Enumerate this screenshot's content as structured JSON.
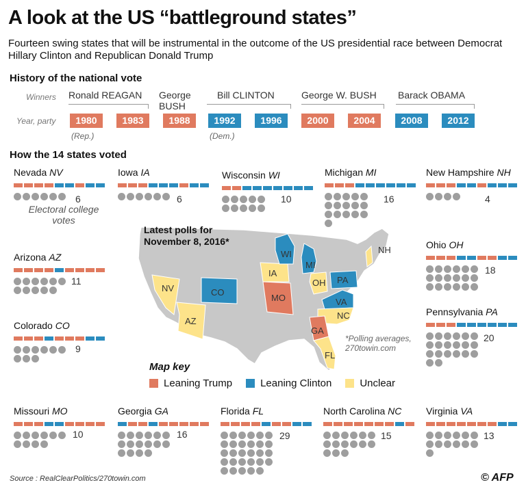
{
  "title": "A look at the US “battleground states”",
  "subtitle": "Fourteen swing states that will be instrumental in the outcome of the US presidential race between Democrat Hillary Clinton and Republican Donald Trump",
  "history": {
    "heading": "History of the national vote",
    "winners_label": "Winners",
    "year_label": "Year, party",
    "winners": [
      "Ronald REAGAN",
      "George BUSH",
      "Bill CLINTON",
      "George W. BUSH",
      "Barack OBAMA"
    ],
    "rep_note": "(Rep.)",
    "dem_note": "(Dem.)",
    "years": [
      {
        "year": "1980",
        "party": "R"
      },
      {
        "year": "1983",
        "party": "R"
      },
      {
        "year": "1988",
        "party": "R"
      },
      {
        "year": "1992",
        "party": "D"
      },
      {
        "year": "1996",
        "party": "D"
      },
      {
        "year": "2000",
        "party": "R"
      },
      {
        "year": "2004",
        "party": "R"
      },
      {
        "year": "2008",
        "party": "D"
      },
      {
        "year": "2012",
        "party": "D"
      }
    ]
  },
  "colors": {
    "rep": "#e07a5f",
    "dem": "#2b8cbe",
    "unclear": "#fde38a",
    "dot": "#9e9e9e",
    "map_grey": "#c8c8c8"
  },
  "states_heading": "How the 14 states voted",
  "electoral_note": "Electoral college votes",
  "states": [
    {
      "name": "Nevada",
      "abbr": "NV",
      "votes": "6",
      "history": "RRRRDDRDD"
    },
    {
      "name": "Iowa",
      "abbr": "IA",
      "votes": "6",
      "history": "RRRDDDRDD"
    },
    {
      "name": "Wisconsin",
      "abbr": "WI",
      "votes": "10",
      "history": "RRDDDDDDD"
    },
    {
      "name": "Michigan",
      "abbr": "MI",
      "votes": "16",
      "history": "RRRDDDDDD"
    },
    {
      "name": "New Hampshire",
      "abbr": "NH",
      "votes": "4",
      "history": "RRRDDRDDD"
    },
    {
      "name": "Arizona",
      "abbr": "AZ",
      "votes": "11",
      "history": "RRRRDRRRR"
    },
    {
      "name": "Ohio",
      "abbr": "OH",
      "votes": "18",
      "history": "RRRDDRRDD"
    },
    {
      "name": "Colorado",
      "abbr": "CO",
      "votes": "9",
      "history": "RRRDRRRDD"
    },
    {
      "name": "Pennsylvania",
      "abbr": "PA",
      "votes": "20",
      "history": "RRRDDDDDD"
    },
    {
      "name": "Missouri",
      "abbr": "MO",
      "votes": "10",
      "history": "RRRDDRRRR"
    },
    {
      "name": "Georgia",
      "abbr": "GA",
      "votes": "16",
      "history": "DRRDRRRRR"
    },
    {
      "name": "Florida",
      "abbr": "FL",
      "votes": "29",
      "history": "RRRRDRRDD"
    },
    {
      "name": "North Carolina",
      "abbr": "NC",
      "votes": "15",
      "history": "RRRRRRRDR"
    },
    {
      "name": "Virginia",
      "abbr": "VA",
      "votes": "13",
      "history": "RRRRRRRDD"
    }
  ],
  "map": {
    "polls_title": "Latest polls for November 8, 2016*",
    "polling_note": "*Polling averages, 270towin.com",
    "key_title": "Map key",
    "key": [
      "Leaning Trump",
      "Leaning Clinton",
      "Unclear"
    ],
    "state_labels": [
      {
        "abbr": "NV",
        "lean": "unclear"
      },
      {
        "abbr": "AZ",
        "lean": "unclear"
      },
      {
        "abbr": "CO",
        "lean": "clinton"
      },
      {
        "abbr": "IA",
        "lean": "unclear"
      },
      {
        "abbr": "MO",
        "lean": "trump"
      },
      {
        "abbr": "WI",
        "lean": "clinton"
      },
      {
        "abbr": "MI",
        "lean": "clinton"
      },
      {
        "abbr": "OH",
        "lean": "unclear"
      },
      {
        "abbr": "PA",
        "lean": "clinton"
      },
      {
        "abbr": "VA",
        "lean": "clinton"
      },
      {
        "abbr": "NC",
        "lean": "unclear"
      },
      {
        "abbr": "GA",
        "lean": "trump"
      },
      {
        "abbr": "FL",
        "lean": "unclear"
      },
      {
        "abbr": "NH",
        "lean": "unclear"
      }
    ]
  },
  "source": "Source : RealClearPolitics/270towin.com",
  "credit": "© AFP"
}
